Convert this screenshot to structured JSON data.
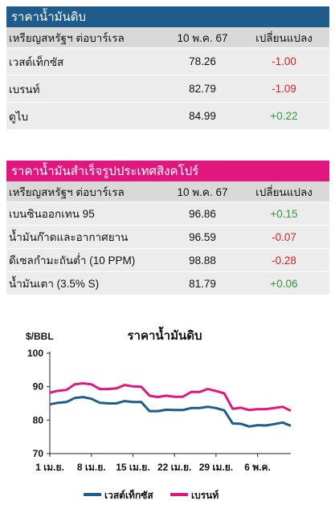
{
  "crude": {
    "title": "ราคาน้ำมันดิบ",
    "header": {
      "unit": "เหรียญสหรัฐฯ ต่อบาร์เรล",
      "date": "10 พ.ค. 67",
      "change": "เปลี่ยนแปลง"
    },
    "rows": [
      {
        "name": "เวสต์เท็กซัส",
        "price": "78.26",
        "change": "-1.00",
        "dir": "neg"
      },
      {
        "name": "เบรนท์",
        "price": "82.79",
        "change": "-1.09",
        "dir": "neg"
      },
      {
        "name": "ดูไบ",
        "price": "84.99",
        "change": "+0.22",
        "dir": "pos"
      }
    ]
  },
  "refined": {
    "title": "ราคาน้ำมันสำเร็จรูปประเทศสิงคโปร์",
    "header": {
      "unit": "เหรียญสหรัฐฯ ต่อบาร์เรล",
      "date": "10 พ.ค. 67",
      "change": "เปลี่ยนแปลง"
    },
    "rows": [
      {
        "name": "เบนซินออกเทน 95",
        "price": "96.86",
        "change": "+0.15",
        "dir": "pos"
      },
      {
        "name": "น้ำมันก๊าดและอากาศยาน",
        "price": "96.59",
        "change": "-0.07",
        "dir": "neg"
      },
      {
        "name": "ดีเซลกำมะถันต่ำ (10 PPM)",
        "price": "98.88",
        "change": "-0.28",
        "dir": "neg"
      },
      {
        "name": "น้ำมันเตา (3.5% S)",
        "price": "81.79",
        "change": "+0.06",
        "dir": "pos"
      }
    ]
  },
  "colors": {
    "blue_bar": "#1f5c8c",
    "pink_bar": "#e0177f",
    "wti": "#1f5c8c",
    "brent": "#e0177f",
    "negative": "#d0212f",
    "positive": "#2f9a3a"
  },
  "chart_data": {
    "type": "line",
    "title": "ราคาน้ำมันดิบ",
    "ylabel": "$/BBL",
    "ylim": [
      70,
      100
    ],
    "yticks": [
      70,
      80,
      90,
      100
    ],
    "grid": false,
    "legend_position": "bottom",
    "xtick_labels": [
      "1 เม.ย.",
      "8 เม.ย.",
      "15 เม.ย.",
      "22 เม.ย.",
      "29 เม.ย.",
      "6 พ.ค."
    ],
    "x": [
      "1 เม.ย.",
      "2 เม.ย.",
      "3 เม.ย.",
      "4 เม.ย.",
      "5 เม.ย.",
      "8 เม.ย.",
      "9 เม.ย.",
      "10 เม.ย.",
      "11 เม.ย.",
      "12 เม.ย.",
      "15 เม.ย.",
      "16 เม.ย.",
      "17 เม.ย.",
      "18 เม.ย.",
      "19 เม.ย.",
      "22 เม.ย.",
      "23 เม.ย.",
      "24 เม.ย.",
      "25 เม.ย.",
      "26 เม.ย.",
      "29 เม.ย.",
      "30 เม.ย.",
      "1 พ.ค.",
      "2 พ.ค.",
      "3 พ.ค.",
      "6 พ.ค.",
      "7 พ.ค.",
      "8 พ.ค.",
      "9 พ.ค.",
      "10 พ.ค."
    ],
    "series": [
      {
        "name": "เวสต์เท็กซัส",
        "values": [
          84.7,
          85.2,
          85.4,
          86.6,
          86.9,
          86.4,
          85.2,
          85.0,
          85.0,
          85.7,
          85.4,
          85.4,
          82.7,
          82.7,
          83.1,
          83.0,
          83.0,
          83.6,
          83.6,
          84.0,
          83.6,
          82.9,
          79.0,
          78.9,
          78.1,
          78.5,
          78.4,
          78.8,
          79.3,
          78.3
        ]
      },
      {
        "name": "เบรนท์",
        "values": [
          88.2,
          88.8,
          89.0,
          90.7,
          91.0,
          90.7,
          89.3,
          89.3,
          89.5,
          90.5,
          90.1,
          90.0,
          87.3,
          86.9,
          87.3,
          87.0,
          87.0,
          88.4,
          88.4,
          89.3,
          88.7,
          88.0,
          83.4,
          83.7,
          83.0,
          83.3,
          83.3,
          83.6,
          84.0,
          82.8
        ]
      }
    ]
  }
}
